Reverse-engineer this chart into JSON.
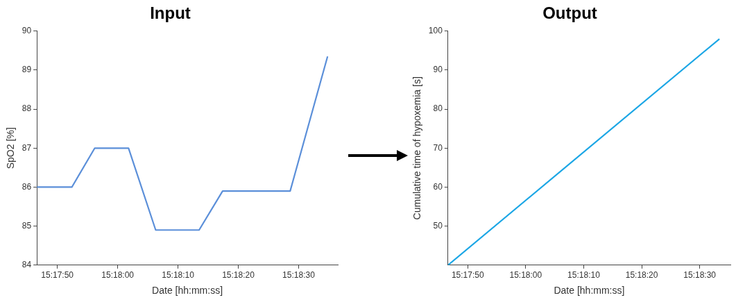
{
  "chart_data": [
    {
      "type": "line",
      "title": "Input",
      "xlabel": "Date [hh:mm:ss]",
      "ylabel": "SpO2 [%]",
      "x": [
        15.296278,
        15.297889,
        15.298944,
        15.3005,
        15.30175,
        15.30375,
        15.304833,
        15.307944,
        15.309667
      ],
      "series": [
        {
          "color": "#5b8fd9",
          "values": [
            86.0,
            86.0,
            87.0,
            87.0,
            84.9,
            84.9,
            85.9,
            85.9,
            89.35
          ]
        }
      ],
      "xlim": [
        15.296278,
        15.310139
      ],
      "xticks": [
        {
          "value": 15.297222,
          "label": "15:17:50"
        },
        {
          "value": 15.3,
          "label": "15:18:00"
        },
        {
          "value": 15.302778,
          "label": "15:18:10"
        },
        {
          "value": 15.305556,
          "label": "15:18:20"
        },
        {
          "value": 15.308333,
          "label": "15:18:30"
        }
      ],
      "ylim": [
        84,
        90
      ],
      "yticks": [
        84,
        85,
        86,
        87,
        88,
        89,
        90
      ],
      "grid": false,
      "legend": false,
      "marker": "none",
      "line_style": "solid"
    },
    {
      "type": "line",
      "title": "Output",
      "xlabel": "Date [hh:mm:ss]",
      "ylabel": "Cumulative time of hypoxemia [s]",
      "x": [
        15.296278,
        15.309278
      ],
      "series": [
        {
          "color": "#1ba6e5",
          "values": [
            40,
            98
          ]
        }
      ],
      "xlim": [
        15.296278,
        15.309806
      ],
      "xticks": [
        {
          "value": 15.297222,
          "label": "15:17:50"
        },
        {
          "value": 15.3,
          "label": "15:18:00"
        },
        {
          "value": 15.302778,
          "label": "15:18:10"
        },
        {
          "value": 15.305556,
          "label": "15:18:20"
        },
        {
          "value": 15.308333,
          "label": "15:18:30"
        }
      ],
      "ylim": [
        40,
        100
      ],
      "yticks": [
        50,
        60,
        70,
        80,
        90,
        100
      ],
      "grid": false,
      "legend": false,
      "marker": "none",
      "line_style": "solid"
    }
  ]
}
